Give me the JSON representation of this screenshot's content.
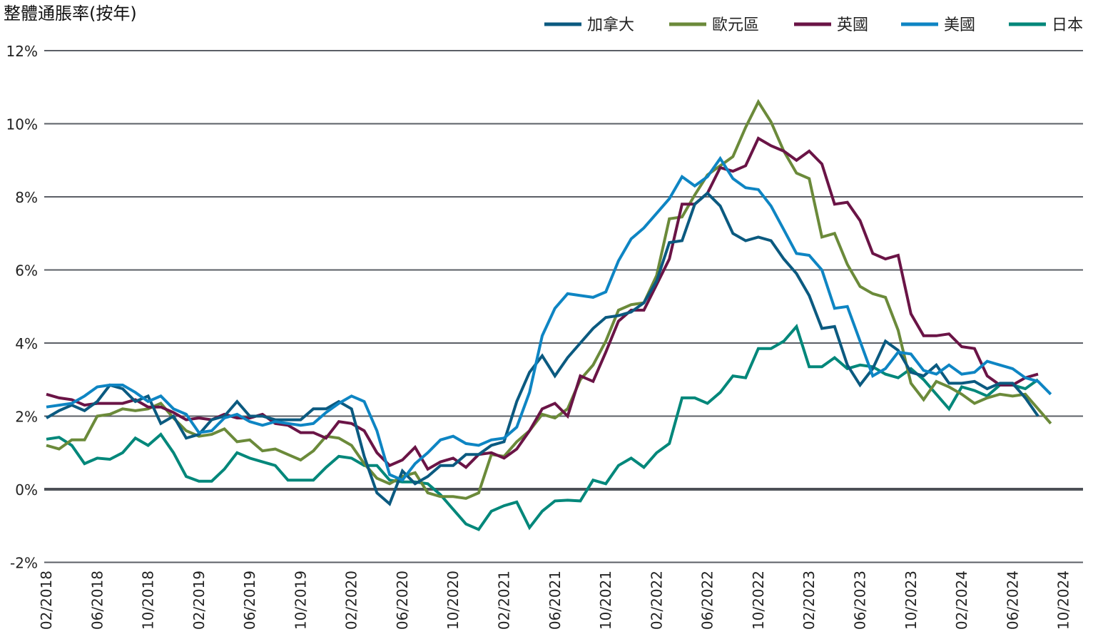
{
  "chart_data": {
    "type": "line",
    "title": "整體通脹率(按年)",
    "xlabel": "",
    "ylabel": "",
    "y_unit": "%",
    "ylim": [
      -2,
      12
    ],
    "yticks": [
      12,
      10,
      8,
      6,
      4,
      2,
      0,
      -2
    ],
    "ytick_labels": [
      "12%",
      "10%",
      "8%",
      "6%",
      "4%",
      "2%",
      "0%",
      "-2%"
    ],
    "x_start": "02/2018",
    "x_frequency": "monthly",
    "xlim": [
      "02/2018",
      "10/2024"
    ],
    "xtick_labels": [
      "02/2018",
      "06/2018",
      "10/2018",
      "02/2019",
      "06/2019",
      "10/2019",
      "02/2020",
      "06/2020",
      "10/2020",
      "02/2021",
      "06/2021",
      "10/2021",
      "02/2022",
      "06/2022",
      "10/2022",
      "02/2023",
      "06/2023",
      "10/2023",
      "02/2024",
      "06/2024",
      "10/2024"
    ],
    "grid": true,
    "legend_position": "top-right",
    "series": [
      {
        "name": "加拿大",
        "color": "#0b5a80",
        "values": [
          1.95,
          2.15,
          2.3,
          2.15,
          2.4,
          2.85,
          2.75,
          2.4,
          2.55,
          1.8,
          2.0,
          1.4,
          1.5,
          1.9,
          2.0,
          2.4,
          2.0,
          2.0,
          1.9,
          1.9,
          1.9,
          2.2,
          2.2,
          2.4,
          2.2,
          0.9,
          -0.1,
          -0.4,
          0.5,
          0.15,
          0.35,
          0.65,
          0.65,
          0.95,
          0.95,
          1.2,
          1.3,
          2.4,
          3.2,
          3.65,
          3.1,
          3.6,
          4.0,
          4.4,
          4.7,
          4.75,
          4.85,
          5.1,
          5.7,
          6.75,
          6.8,
          7.8,
          8.1,
          7.75,
          7.0,
          6.8,
          6.9,
          6.8,
          6.3,
          5.9,
          5.3,
          4.4,
          4.45,
          3.4,
          2.85,
          3.3,
          4.05,
          3.8,
          3.2,
          3.1,
          3.4,
          2.9,
          2.9,
          2.95,
          2.75,
          2.9,
          2.9,
          2.5,
          2.0
        ]
      },
      {
        "name": "歐元區",
        "color": "#6b8a3a",
        "values": [
          1.2,
          1.1,
          1.35,
          1.35,
          2.0,
          2.05,
          2.2,
          2.15,
          2.2,
          2.35,
          1.95,
          1.6,
          1.45,
          1.5,
          1.65,
          1.3,
          1.35,
          1.05,
          1.1,
          0.95,
          0.8,
          1.05,
          1.45,
          1.4,
          1.2,
          0.7,
          0.3,
          0.15,
          0.35,
          0.45,
          -0.1,
          -0.2,
          -0.2,
          -0.25,
          -0.1,
          0.95,
          0.9,
          1.3,
          1.6,
          2.05,
          1.95,
          2.2,
          3.0,
          3.4,
          4.05,
          4.9,
          5.05,
          5.1,
          5.85,
          7.4,
          7.45,
          8.05,
          8.6,
          8.85,
          9.1,
          9.9,
          10.6,
          10.05,
          9.25,
          8.65,
          8.5,
          6.9,
          7.0,
          6.15,
          5.55,
          5.35,
          5.25,
          4.35,
          2.9,
          2.45,
          2.95,
          2.8,
          2.6,
          2.35,
          2.5,
          2.6,
          2.55,
          2.6,
          2.2,
          1.8
        ]
      },
      {
        "name": "英國",
        "color": "#6a1446",
        "values": [
          2.6,
          2.5,
          2.45,
          2.3,
          2.35,
          2.35,
          2.35,
          2.45,
          2.25,
          2.25,
          2.1,
          1.9,
          1.95,
          1.9,
          2.05,
          1.95,
          1.95,
          2.05,
          1.8,
          1.75,
          1.55,
          1.55,
          1.4,
          1.85,
          1.8,
          1.6,
          1.0,
          0.65,
          0.8,
          1.15,
          0.55,
          0.75,
          0.85,
          0.6,
          0.95,
          1.0,
          0.85,
          1.1,
          1.6,
          2.2,
          2.35,
          2.0,
          3.1,
          2.95,
          3.75,
          4.6,
          4.9,
          4.9,
          5.6,
          6.3,
          7.8,
          7.8,
          8.1,
          8.8,
          8.7,
          8.85,
          9.6,
          9.4,
          9.25,
          9.0,
          9.25,
          8.9,
          7.8,
          7.85,
          7.35,
          6.45,
          6.3,
          6.4,
          4.8,
          4.2,
          4.2,
          4.25,
          3.9,
          3.85,
          3.1,
          2.85,
          2.85,
          3.05,
          3.15
        ]
      },
      {
        "name": "美國",
        "color": "#0e85c3",
        "values": [
          2.25,
          2.3,
          2.35,
          2.55,
          2.8,
          2.85,
          2.85,
          2.65,
          2.4,
          2.55,
          2.2,
          2.05,
          1.55,
          1.6,
          1.95,
          2.05,
          1.85,
          1.75,
          1.85,
          1.8,
          1.75,
          1.8,
          2.1,
          2.35,
          2.55,
          2.4,
          1.6,
          0.4,
          0.25,
          0.7,
          1.0,
          1.35,
          1.45,
          1.25,
          1.2,
          1.35,
          1.4,
          1.7,
          2.65,
          4.2,
          4.95,
          5.35,
          5.3,
          5.25,
          5.4,
          6.25,
          6.85,
          7.15,
          7.55,
          7.95,
          8.55,
          8.3,
          8.55,
          9.05,
          8.5,
          8.25,
          8.2,
          7.75,
          7.1,
          6.45,
          6.4,
          6.0,
          4.95,
          5.0,
          4.05,
          3.1,
          3.3,
          3.75,
          3.7,
          3.25,
          3.15,
          3.4,
          3.15,
          3.2,
          3.5,
          3.4,
          3.3,
          3.05,
          2.95,
          2.6
        ]
      },
      {
        "name": "日本",
        "color": "#00877a",
        "values": [
          1.37,
          1.42,
          1.2,
          0.7,
          0.85,
          0.82,
          1.0,
          1.4,
          1.2,
          1.5,
          1.0,
          0.35,
          0.22,
          0.22,
          0.55,
          1.0,
          0.85,
          0.75,
          0.65,
          0.25,
          0.25,
          0.25,
          0.6,
          0.9,
          0.85,
          0.65,
          0.65,
          0.25,
          0.2,
          0.2,
          0.15,
          -0.15,
          -0.55,
          -0.95,
          -1.1,
          -0.6,
          -0.45,
          -0.35,
          -1.05,
          -0.6,
          -0.32,
          -0.3,
          -0.32,
          0.25,
          0.15,
          0.65,
          0.85,
          0.6,
          1.0,
          1.25,
          2.5,
          2.5,
          2.35,
          2.65,
          3.1,
          3.05,
          3.85,
          3.85,
          4.05,
          4.45,
          3.35,
          3.35,
          3.6,
          3.3,
          3.4,
          3.35,
          3.15,
          3.05,
          3.3,
          3.0,
          2.6,
          2.2,
          2.8,
          2.7,
          2.55,
          2.85,
          2.85,
          2.75,
          3.0
        ]
      }
    ]
  }
}
